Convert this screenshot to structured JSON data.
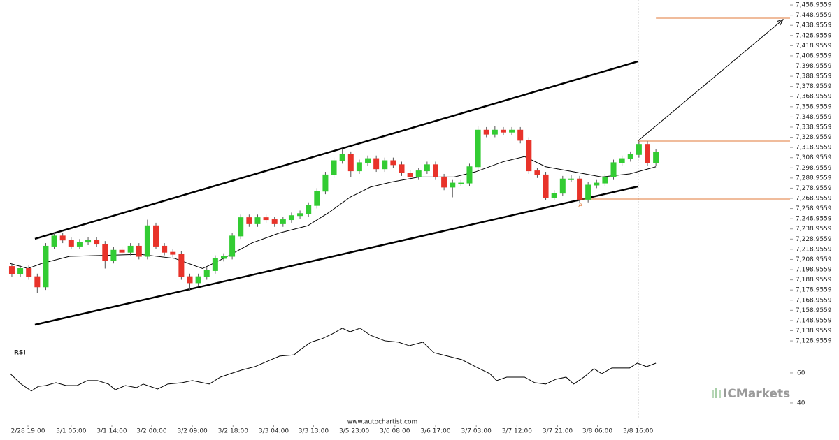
{
  "chart_data": [
    {
      "type": "candlestick",
      "xlim": [
        -1.4,
        91.83
      ],
      "ylim": [
        7124.2,
        7463.8
      ],
      "up_color": "#33cc33",
      "down_color": "#e8332a",
      "xticks": [
        {
          "value": 1.9,
          "label": "2/28 19:00"
        },
        {
          "value": 7.0,
          "label": "3/1 05:00"
        },
        {
          "value": 11.8,
          "label": "3/1 14:00"
        },
        {
          "value": 16.5,
          "label": "3/2 00:00"
        },
        {
          "value": 21.3,
          "label": "3/2 09:00"
        },
        {
          "value": 26.1,
          "label": "3/2 18:00"
        },
        {
          "value": 30.9,
          "label": "3/3 04:00"
        },
        {
          "value": 35.6,
          "label": "3/3 13:00"
        },
        {
          "value": 40.4,
          "label": "3/5 23:00"
        },
        {
          "value": 45.2,
          "label": "3/6 08:00"
        },
        {
          "value": 50.0,
          "label": "3/6 17:00"
        },
        {
          "value": 54.8,
          "label": "3/7 03:00"
        },
        {
          "value": 59.6,
          "label": "3/7 12:00"
        },
        {
          "value": 64.4,
          "label": "3/7 21:00"
        },
        {
          "value": 69.1,
          "label": "3/8 06:00"
        },
        {
          "value": 73.9,
          "label": "3/8 16:00"
        }
      ],
      "yticks": [
        {
          "value": 7128.9559,
          "label": "7,128.9559"
        },
        {
          "value": 7138.9559,
          "label": "7,138.9559"
        },
        {
          "value": 7148.9559,
          "label": "7,148.9559"
        },
        {
          "value": 7158.9559,
          "label": "7,158.9559"
        },
        {
          "value": 7168.9559,
          "label": "7,168.9559"
        },
        {
          "value": 7178.9559,
          "label": "7,178.9559"
        },
        {
          "value": 7188.9559,
          "label": "7,188.9559"
        },
        {
          "value": 7198.9559,
          "label": "7,198.9559"
        },
        {
          "value": 7208.9559,
          "label": "7,208.9559"
        },
        {
          "value": 7218.9559,
          "label": "7,218.9559"
        },
        {
          "value": 7228.9559,
          "label": "7,228.9559"
        },
        {
          "value": 7238.9559,
          "label": "7,238.9559"
        },
        {
          "value": 7248.9559,
          "label": "7,248.9559"
        },
        {
          "value": 7258.9559,
          "label": "7,258.9559"
        },
        {
          "value": 7268.9559,
          "label": "7,268.9559"
        },
        {
          "value": 7278.9559,
          "label": "7,278.9559"
        },
        {
          "value": 7288.9559,
          "label": "7,288.9559"
        },
        {
          "value": 7298.9559,
          "label": "7,298.9559"
        },
        {
          "value": 7308.9559,
          "label": "7,308.9559"
        },
        {
          "value": 7318.9559,
          "label": "7,318.9559"
        },
        {
          "value": 7328.9559,
          "label": "7,328.9559"
        },
        {
          "value": 7338.9559,
          "label": "7,338.9559"
        },
        {
          "value": 7348.9559,
          "label": "7,348.9559"
        },
        {
          "value": 7358.9559,
          "label": "7,358.9559"
        },
        {
          "value": 7368.9559,
          "label": "7,368.9559"
        },
        {
          "value": 7378.9559,
          "label": "7,378.9559"
        },
        {
          "value": 7388.9559,
          "label": "7,388.9559"
        },
        {
          "value": 7398.9559,
          "label": "7,398.9559"
        },
        {
          "value": 7408.9559,
          "label": "7,408.9559"
        },
        {
          "value": 7418.9559,
          "label": "7,418.9559"
        },
        {
          "value": 7428.9559,
          "label": "7,428.9559"
        },
        {
          "value": 7438.9559,
          "label": "7,438.9559"
        },
        {
          "value": 7448.9559,
          "label": "7,448.9559"
        },
        {
          "value": 7458.9559,
          "label": "7,458.9559"
        }
      ],
      "open": [
        7202,
        7195,
        7200,
        7192,
        7182,
        7222,
        7232,
        7228,
        7222,
        7226,
        7228,
        7224,
        7208,
        7218,
        7216,
        7222,
        7212,
        7242,
        7222,
        7216,
        7214,
        7192,
        7186,
        7192,
        7198,
        7210,
        7212,
        7232,
        7250,
        7244,
        7250,
        7248,
        7244,
        7248,
        7252,
        7254,
        7262,
        7276,
        7292,
        7306,
        7312,
        7296,
        7304,
        7308,
        7298,
        7306,
        7302,
        7294,
        7290,
        7296,
        7302,
        7290,
        7280,
        7284,
        7284,
        7300,
        7336,
        7332,
        7336,
        7334,
        7336,
        7326,
        7296,
        7292,
        7270,
        7274,
        7288,
        7288,
        7268,
        7282,
        7284,
        7290,
        7304,
        7308,
        7312,
        7322,
        7304
      ],
      "high": [
        7205,
        7203,
        7203,
        7195,
        7225,
        7235,
        7235,
        7231,
        7229,
        7231,
        7231,
        7227,
        7221,
        7221,
        7225,
        7225,
        7248,
        7245,
        7225,
        7219,
        7217,
        7195,
        7195,
        7201,
        7213,
        7215,
        7235,
        7253,
        7253,
        7253,
        7253,
        7251,
        7251,
        7255,
        7257,
        7265,
        7279,
        7295,
        7309,
        7318,
        7315,
        7307,
        7311,
        7311,
        7309,
        7309,
        7305,
        7297,
        7299,
        7305,
        7305,
        7293,
        7287,
        7287,
        7303,
        7340,
        7339,
        7340,
        7339,
        7339,
        7339,
        7329,
        7299,
        7295,
        7277,
        7291,
        7292,
        7291,
        7285,
        7287,
        7293,
        7307,
        7311,
        7315,
        7325,
        7325,
        7317
      ],
      "low": [
        7192,
        7192,
        7189,
        7176,
        7179,
        7219,
        7225,
        7219,
        7219,
        7223,
        7221,
        7200,
        7205,
        7213,
        7213,
        7209,
        7209,
        7219,
        7213,
        7211,
        7189,
        7178,
        7183,
        7189,
        7195,
        7207,
        7209,
        7229,
        7241,
        7241,
        7245,
        7241,
        7241,
        7245,
        7249,
        7251,
        7259,
        7273,
        7289,
        7303,
        7290,
        7293,
        7301,
        7295,
        7295,
        7299,
        7291,
        7287,
        7287,
        7293,
        7287,
        7277,
        7270,
        7281,
        7281,
        7297,
        7329,
        7329,
        7331,
        7331,
        7323,
        7293,
        7289,
        7267,
        7267,
        7271,
        7285,
        7264,
        7265,
        7279,
        7281,
        7287,
        7301,
        7305,
        7309,
        7301,
        7301
      ],
      "close": [
        7195,
        7200,
        7192,
        7182,
        7222,
        7232,
        7228,
        7222,
        7226,
        7228,
        7224,
        7208,
        7218,
        7216,
        7222,
        7212,
        7242,
        7222,
        7216,
        7214,
        7192,
        7186,
        7192,
        7198,
        7210,
        7212,
        7232,
        7250,
        7244,
        7250,
        7248,
        7244,
        7248,
        7252,
        7254,
        7262,
        7276,
        7292,
        7306,
        7312,
        7296,
        7304,
        7308,
        7298,
        7306,
        7302,
        7294,
        7290,
        7296,
        7302,
        7290,
        7280,
        7284,
        7284,
        7300,
        7336,
        7332,
        7336,
        7334,
        7336,
        7326,
        7296,
        7292,
        7270,
        7274,
        7288,
        7288,
        7268,
        7282,
        7284,
        7290,
        7304,
        7308,
        7312,
        7322,
        7304,
        7314
      ],
      "moving_average": {
        "color": "#000000",
        "x": [
          -0.2,
          1.9,
          3.5,
          6.8,
          11.0,
          15.1,
          19.2,
          22.5,
          25.0,
          28.3,
          31.6,
          34.9,
          37.4,
          39.9,
          42.3,
          44.8,
          48.1,
          52.2,
          54.7,
          58.0,
          60.5,
          63.0,
          66.3,
          69.6,
          72.9,
          76.0
        ],
        "values": [
          7205,
          7200,
          7205,
          7212,
          7213,
          7214,
          7210,
          7200,
          7210,
          7225,
          7235,
          7242,
          7255,
          7270,
          7280,
          7285,
          7290,
          7290,
          7295,
          7305,
          7310,
          7300,
          7295,
          7290,
          7293,
          7300
        ]
      },
      "channel": {
        "color": "#000000",
        "x": [
          2.72,
          73.85
        ],
        "upper": [
          7229.2,
          7403.4
        ],
        "lower": [
          7144.8,
          7280.6
        ]
      },
      "levels": [
        {
          "value": 7325.2,
          "x": 73.85
        },
        {
          "value": 7268.3,
          "x": 66.7
        },
        {
          "value": 7446,
          "x": 76.0
        }
      ],
      "level_color": "#e07a3a",
      "arrow": {
        "x": [
          73.85,
          91.0
        ],
        "values": [
          7325.2,
          7444.6
        ],
        "color": "#000000"
      },
      "current_x": 73.9,
      "pattern_label": {
        "text": "A",
        "x": 67.1,
        "y": 7262
      }
    },
    {
      "type": "line",
      "title": "RSI",
      "xlim": [
        -1.4,
        91.83
      ],
      "ylim": [
        31.6,
        94.4
      ],
      "yticks": [
        40,
        60
      ],
      "color": "#000000",
      "x": [
        -0.2,
        1.1,
        2.3,
        3.1,
        4.0,
        5.2,
        6.4,
        7.7,
        8.9,
        10.1,
        11.4,
        12.2,
        13.4,
        14.7,
        15.5,
        17.2,
        18.4,
        20.1,
        21.3,
        22.5,
        23.3,
        24.6,
        25.8,
        27.1,
        28.7,
        30.0,
        31.6,
        33.3,
        34.1,
        35.3,
        36.6,
        37.8,
        39.0,
        39.9,
        41.1,
        42.3,
        44.0,
        45.6,
        46.9,
        48.5,
        49.8,
        51.4,
        53.1,
        54.7,
        56.4,
        57.2,
        58.4,
        60.5,
        61.7,
        63.0,
        64.2,
        65.4,
        66.3,
        67.5,
        68.7,
        69.6,
        70.8,
        72.9,
        73.8,
        74.9,
        76.0
      ],
      "values": [
        59.5,
        52.6,
        48,
        51,
        51.6,
        53.5,
        51.6,
        51.6,
        54.9,
        54.9,
        52.6,
        48.8,
        51.6,
        50.2,
        52.6,
        49.3,
        52.6,
        53.5,
        54.9,
        53.5,
        52.6,
        57.2,
        59.5,
        61.9,
        64.2,
        67.4,
        71.2,
        72,
        75.8,
        80.5,
        82.8,
        86,
        89.8,
        87.4,
        89.8,
        85.1,
        81.4,
        80.5,
        78.1,
        80.5,
        73.5,
        71.2,
        68.8,
        64.2,
        59.5,
        54.9,
        57.2,
        57.2,
        53.5,
        52.6,
        55.8,
        57.2,
        52.6,
        57.2,
        62.8,
        59.5,
        63.3,
        63.3,
        66.5,
        64.2,
        66.5
      ]
    }
  ],
  "source": "www.autochartist.com",
  "brand": "ICMarkets"
}
